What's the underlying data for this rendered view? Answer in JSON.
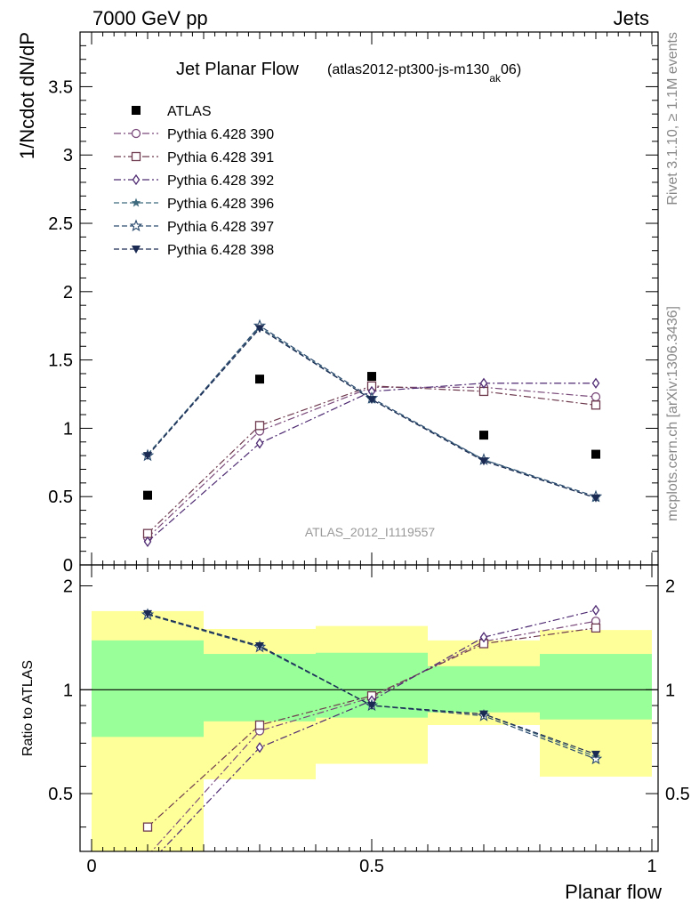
{
  "header": {
    "left": "7000 GeV pp",
    "right": "Jets"
  },
  "side_labels": {
    "top": "Rivet 3.1.10, ≥ 1.1M events",
    "bottom": "mcplots.cern.ch [arXiv:1306.3436]"
  },
  "chart_data": [
    {
      "type": "line",
      "title": "Jet Planar Flow",
      "subtitle_parts": [
        "(atlas2012-pt300-js-m130",
        "ak",
        "06)"
      ],
      "watermark": "ATLAS_2012_I1119557",
      "xlabel": "Planar flow",
      "ylabel": "1/Ncdot dN/dP",
      "xlim": [
        0,
        1
      ],
      "ylim": [
        0,
        3.9
      ],
      "yticks": [
        "0",
        "0.5",
        "1",
        "1.5",
        "2",
        "2.5",
        "3",
        "3.5"
      ],
      "x": [
        0.1,
        0.3,
        0.5,
        0.7,
        0.9
      ],
      "legend_position": "top-left",
      "series": [
        {
          "name": "ATLAS",
          "marker": "filled-square",
          "color": "#000000",
          "values": [
            0.51,
            1.36,
            1.38,
            0.95,
            0.81
          ]
        },
        {
          "name": "Pythia 6.428 390",
          "marker": "open-circle",
          "color": "#7a4a7a",
          "dash": "dashdot",
          "values": [
            0.2,
            0.98,
            1.3,
            1.3,
            1.23
          ]
        },
        {
          "name": "Pythia 6.428 391",
          "marker": "open-square",
          "color": "#6e3a4e",
          "dash": "dashdot",
          "values": [
            0.23,
            1.02,
            1.31,
            1.27,
            1.17
          ]
        },
        {
          "name": "Pythia 6.428 392",
          "marker": "open-diamond",
          "color": "#4e2a72",
          "dash": "dashdot",
          "values": [
            0.17,
            0.89,
            1.27,
            1.33,
            1.33
          ]
        },
        {
          "name": "Pythia 6.428 396",
          "marker": "filled-star",
          "color": "#3e6a7e",
          "dash": "dashed",
          "values": [
            0.81,
            1.74,
            1.21,
            0.77,
            0.49
          ]
        },
        {
          "name": "Pythia 6.428 397",
          "marker": "open-star",
          "color": "#2a4a6e",
          "dash": "dashed",
          "values": [
            0.8,
            1.75,
            1.22,
            0.77,
            0.5
          ]
        },
        {
          "name": "Pythia 6.428 398",
          "marker": "filled-triangle-down",
          "color": "#1a2a52",
          "dash": "dashed",
          "values": [
            0.8,
            1.73,
            1.21,
            0.76,
            0.49
          ]
        }
      ]
    },
    {
      "type": "line",
      "title": "",
      "xlabel": "Planar flow",
      "ylabel": "Ratio to ATLAS",
      "xlim": [
        0,
        1
      ],
      "ylim": [
        0.34,
        2.3
      ],
      "ytick_labels": [
        "0.5",
        "1",
        "2"
      ],
      "xtick_labels": [
        "0",
        "0.5",
        "1"
      ],
      "x": [
        0.1,
        0.3,
        0.5,
        0.7,
        0.9
      ],
      "reference_line": 1,
      "bands": {
        "edges": [
          0,
          0.2,
          0.4,
          0.6,
          0.8,
          1.0
        ],
        "inner": {
          "color": "#99ff99",
          "low": [
            0.73,
            0.81,
            0.83,
            0.86,
            0.82
          ],
          "high": [
            1.39,
            1.27,
            1.28,
            1.17,
            1.27
          ]
        },
        "outer": {
          "color": "#ffff99",
          "low": [
            0.34,
            0.55,
            0.61,
            0.79,
            0.56
          ],
          "high": [
            1.69,
            1.5,
            1.53,
            1.39,
            1.49
          ]
        }
      },
      "series": [
        {
          "name": "Pythia 6.428 390",
          "values": [
            0.33,
            0.76,
            0.95,
            1.38,
            1.58
          ]
        },
        {
          "name": "Pythia 6.428 391",
          "values": [
            0.4,
            0.79,
            0.96,
            1.36,
            1.51
          ]
        },
        {
          "name": "Pythia 6.428 392",
          "values": [
            0.31,
            0.68,
            0.93,
            1.42,
            1.7
          ]
        },
        {
          "name": "Pythia 6.428 396",
          "values": [
            1.66,
            1.34,
            0.9,
            0.85,
            0.64
          ]
        },
        {
          "name": "Pythia 6.428 397",
          "values": [
            1.65,
            1.33,
            0.9,
            0.84,
            0.63
          ]
        },
        {
          "name": "Pythia 6.428 398",
          "values": [
            1.66,
            1.34,
            0.9,
            0.85,
            0.65
          ]
        }
      ]
    }
  ]
}
